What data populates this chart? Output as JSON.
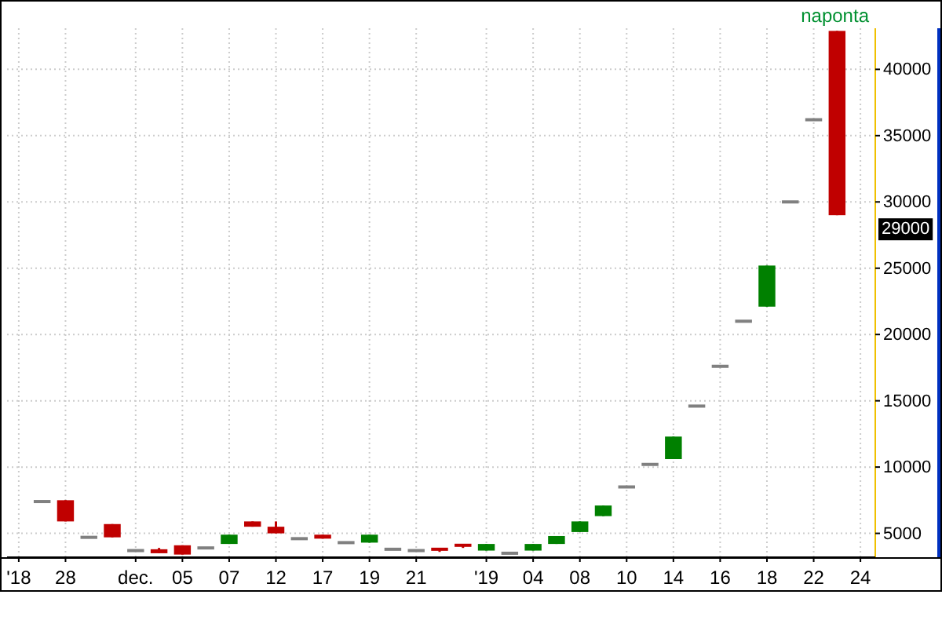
{
  "chart_data": {
    "type": "candlestick",
    "categories": [
      "'18",
      null,
      "28",
      null,
      null,
      "dec.",
      null,
      "05",
      null,
      "07",
      null,
      "12",
      null,
      "17",
      null,
      "19",
      null,
      "21",
      null,
      null,
      "'19",
      null,
      "04",
      null,
      "08",
      null,
      "10",
      null,
      "14",
      null,
      "16",
      null,
      "18",
      null,
      "22",
      null,
      "24"
    ],
    "ohlc": [
      null,
      [
        7400,
        7400,
        7400,
        7400
      ],
      [
        7500,
        7500,
        5900,
        5900
      ],
      [
        4700,
        4700,
        4700,
        4700
      ],
      [
        5700,
        5700,
        4700,
        4700
      ],
      [
        3700,
        3700,
        3700,
        3700
      ],
      [
        3800,
        3900,
        3500,
        3500
      ],
      [
        4100,
        4100,
        3400,
        3400
      ],
      [
        3900,
        3900,
        3900,
        3900
      ],
      [
        4200,
        4900,
        4200,
        4900
      ],
      [
        5900,
        5900,
        5500,
        5500
      ],
      [
        5500,
        5900,
        5000,
        5000
      ],
      [
        4600,
        4600,
        4600,
        4600
      ],
      [
        4900,
        4900,
        4600,
        4600
      ],
      [
        4300,
        4300,
        4300,
        4300
      ],
      [
        4300,
        4900,
        4300,
        4900
      ],
      [
        3800,
        3800,
        3800,
        3800
      ],
      [
        3700,
        3700,
        3700,
        3700
      ],
      [
        3800,
        3800,
        3600,
        3600
      ],
      [
        4100,
        4100,
        3900,
        3900
      ],
      [
        3700,
        4200,
        3700,
        4200
      ],
      [
        3500,
        3500,
        3500,
        3500
      ],
      [
        3700,
        4200,
        3700,
        4200
      ],
      [
        4200,
        4800,
        4200,
        4800
      ],
      [
        5100,
        5900,
        5100,
        5900
      ],
      [
        6300,
        7100,
        6300,
        7100
      ],
      [
        8500,
        8500,
        8500,
        8500
      ],
      [
        10200,
        10200,
        10200,
        10200
      ],
      [
        10600,
        12300,
        10600,
        12300
      ],
      [
        14600,
        14600,
        14600,
        14600
      ],
      [
        17600,
        17600,
        17600,
        17600
      ],
      [
        21000,
        21000,
        21000,
        21000
      ],
      [
        22100,
        25200,
        22100,
        25200
      ],
      [
        30000,
        30000,
        30000,
        30000
      ],
      [
        36200,
        36200,
        36200,
        36200
      ],
      [
        42900,
        42900,
        29000,
        29000
      ],
      null
    ],
    "ylim": [
      3200,
      43100
    ],
    "yticks": [
      5000,
      10000,
      15000,
      20000,
      25000,
      30000,
      35000,
      40000
    ],
    "grid": true,
    "annotations": [
      "naponta",
      "29000"
    ]
  }
}
